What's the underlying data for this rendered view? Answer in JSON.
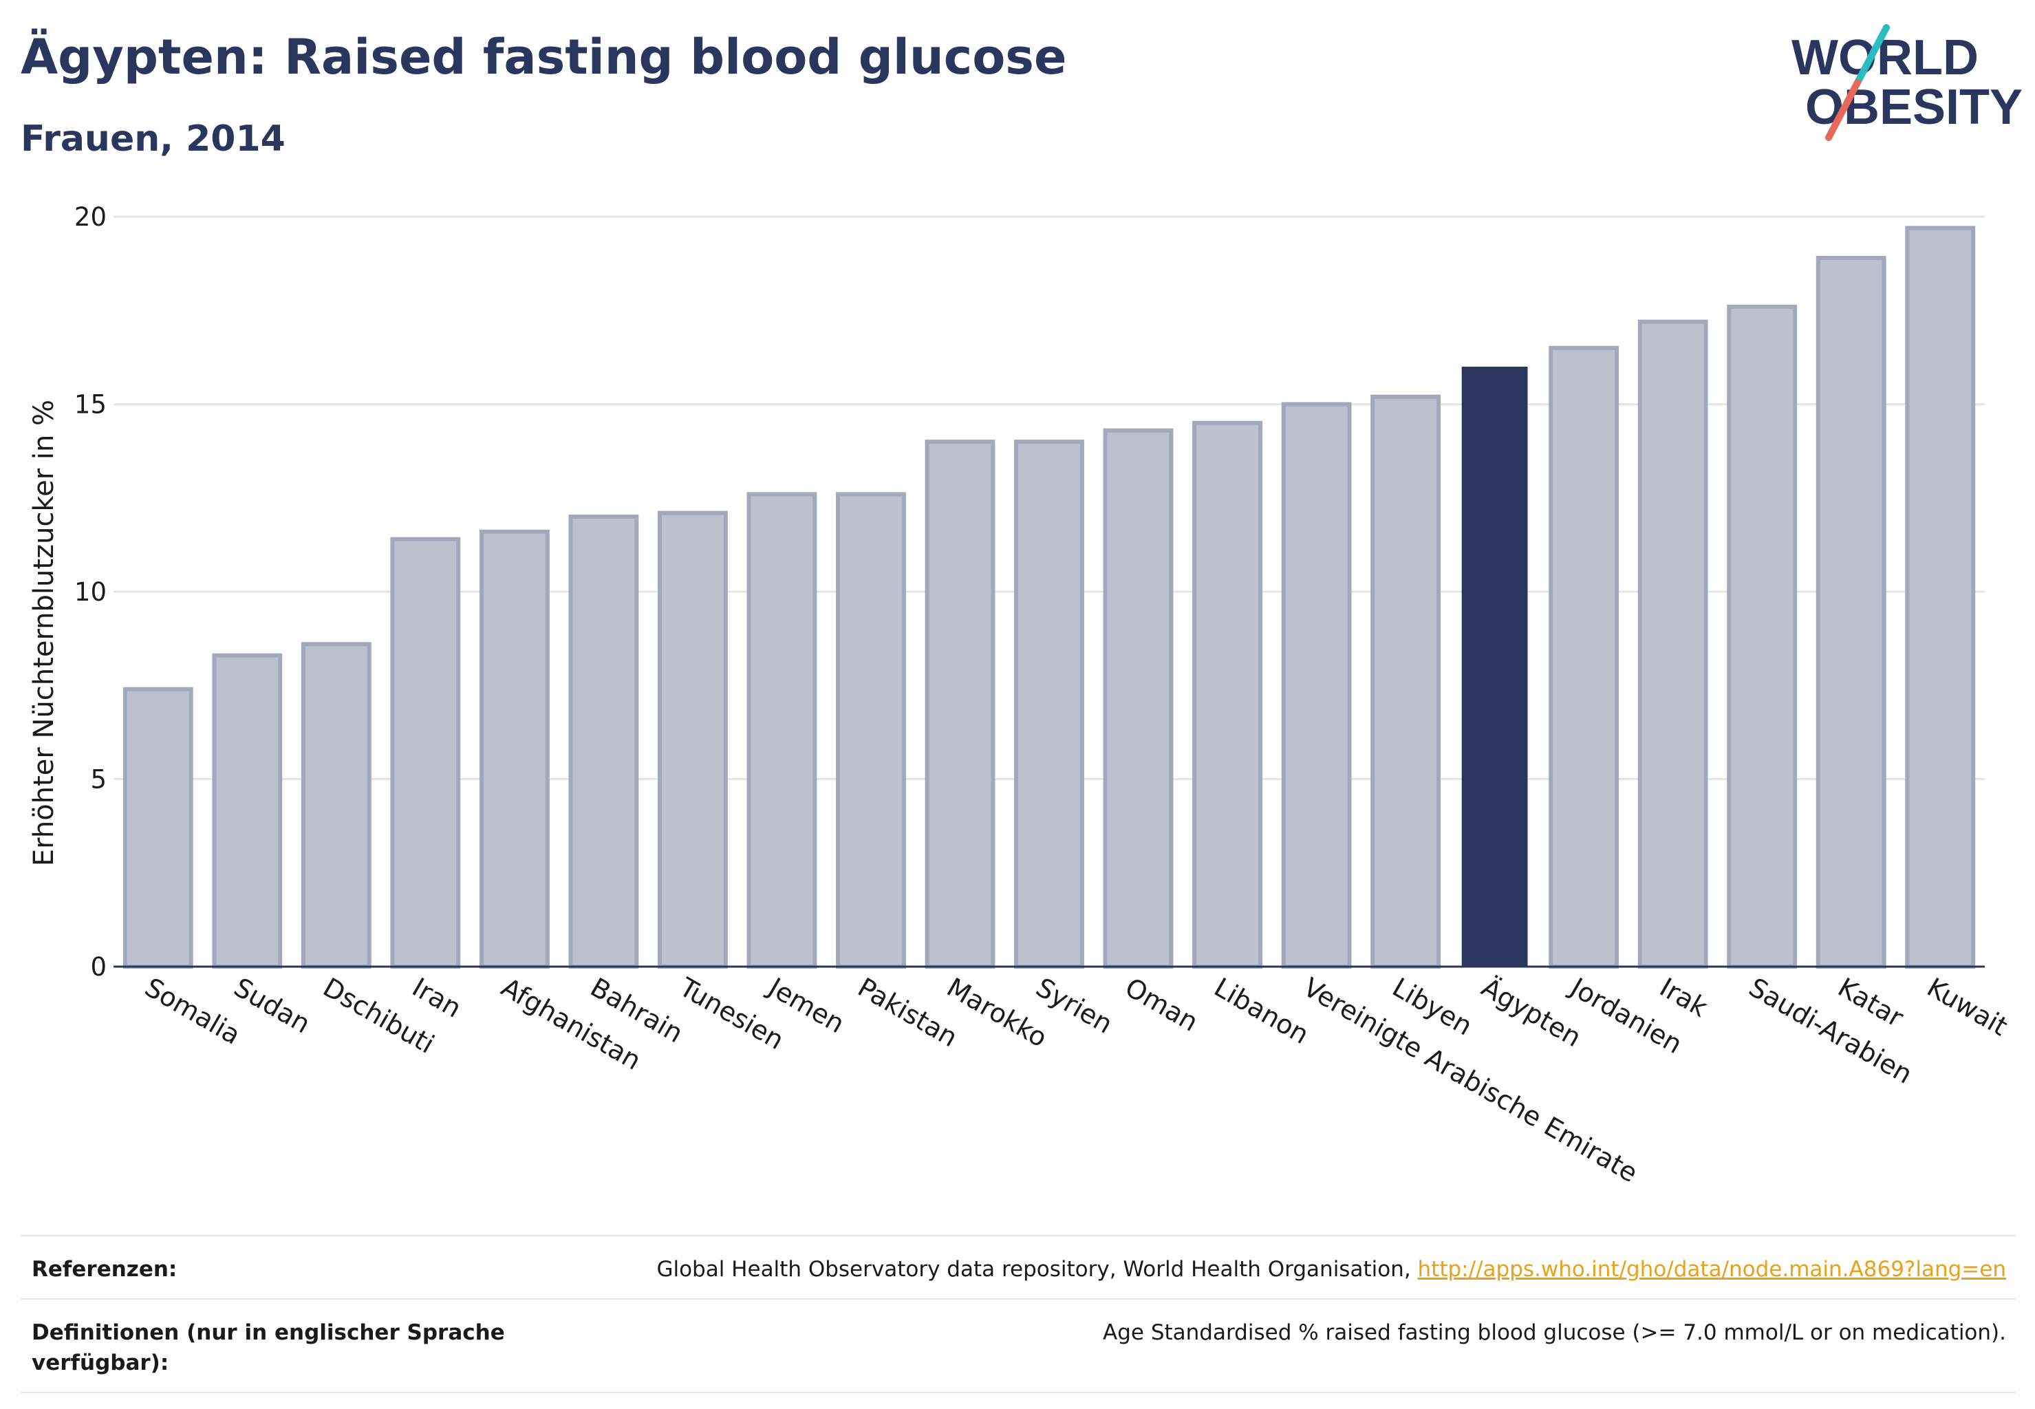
{
  "title": "Ägypten: Raised fasting blood glucose",
  "subtitle": "Frauen, 2014",
  "logo": {
    "line1": "WORLD",
    "line2": "OBESITY",
    "slash_colors": [
      "#2bbcc0",
      "#e8685a"
    ]
  },
  "colors": {
    "highlight": "#2b365e",
    "bar_fill": "#bcc0cf",
    "bar_stroke": "#a3a8bd",
    "grid": "#e6e6e6",
    "link": "#e8a21a"
  },
  "chart_data": {
    "type": "bar",
    "ylabel": "Erhöhter Nüchternblutzucker in %",
    "ylim": [
      0,
      20
    ],
    "yticks": [
      0,
      5,
      10,
      15,
      20
    ],
    "grid": true,
    "highlight": "Ägypten",
    "categories": [
      "Somalia",
      "Sudan",
      "Dschibuti",
      "Iran",
      "Afghanistan",
      "Bahrain",
      "Tunesien",
      "Jemen",
      "Pakistan",
      "Marokko",
      "Syrien",
      "Oman",
      "Libanon",
      "Vereinigte Arabische Emirate",
      "Libyen",
      "Ägypten",
      "Jordanien",
      "Irak",
      "Saudi-Arabien",
      "Katar",
      "Kuwait"
    ],
    "values": [
      7.4,
      8.3,
      8.6,
      11.4,
      11.6,
      12.0,
      12.1,
      12.6,
      12.6,
      14.0,
      14.0,
      14.3,
      14.5,
      15.0,
      15.2,
      16.0,
      16.5,
      17.2,
      17.6,
      18.9,
      19.7
    ]
  },
  "footer": {
    "references_label": "Referenzen:",
    "references_text": "Global Health Observatory data repository, World Health Organisation, ",
    "references_link": "http://apps.who.int/gho/data/node.main.A869?lang=en",
    "definitions_label": "Definitionen (nur in englischer Sprache verfügbar):",
    "definitions_text": "Age Standardised % raised fasting blood glucose (>= 7.0 mmol/L or on medication)."
  }
}
